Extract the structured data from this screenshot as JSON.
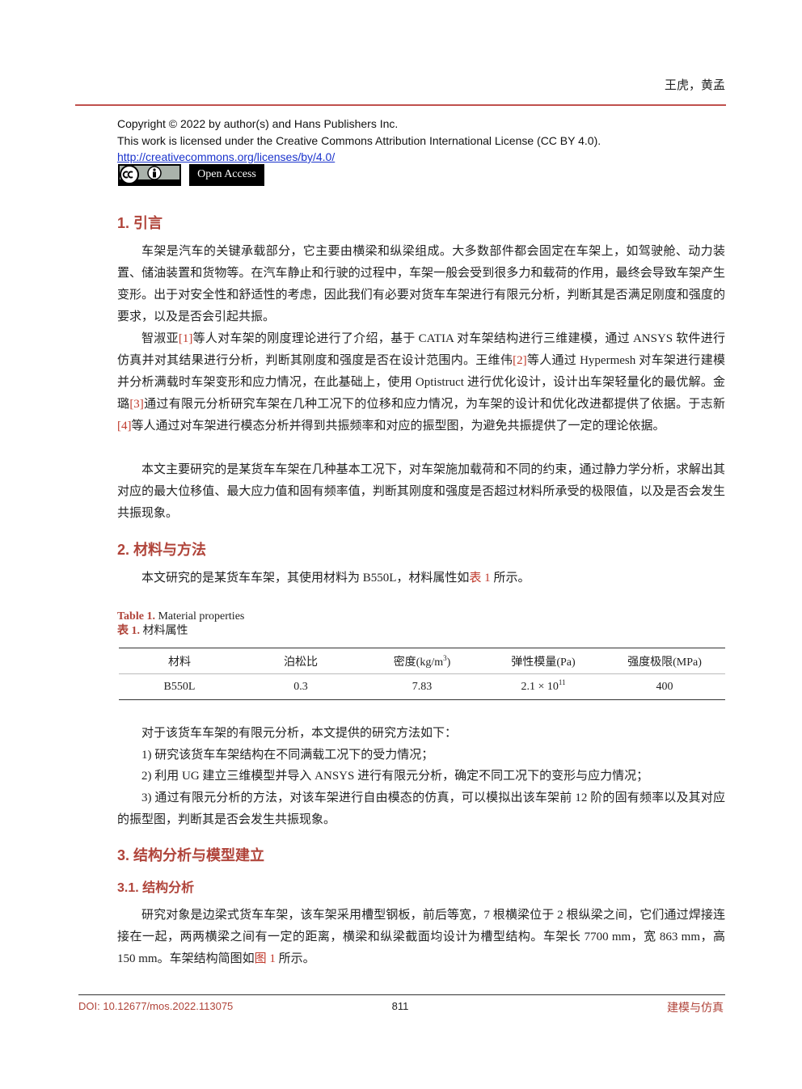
{
  "header": {
    "authors": "王虎，黄孟"
  },
  "license": {
    "copyright": "Copyright © 2022 by author(s) and Hans Publishers Inc.",
    "statement": "This work is licensed under the Creative Commons Attribution International License (CC BY 4.0).",
    "url": "http://creativecommons.org/licenses/by/4.0/",
    "open_access": "Open Access"
  },
  "sections": [
    {
      "heading": "1.  引言",
      "paragraphs": [
        "车架是汽车的关键承载部分，它主要由横梁和纵梁组成。大多数部件都会固定在车架上，如驾驶舱、动力装置、储油装置和货物等。在汽车静止和行驶的过程中，车架一般会受到很多力和载荷的作用，最终会导致车架产生变形。出于对安全性和舒适性的考虑，因此我们有必要对货车车架进行有限元分析，判断其是否满足刚度和强度的要求，以及是否会引起共振。",
        [
          {
            "text": "智淑亚"
          },
          {
            "ref": "[1]"
          },
          {
            "text": "等人对车架的刚度理论进行了介绍，基于 CATIA 对车架结构进行三维建模，通过 ANSYS 软件进行仿真并对其结果进行分析，判断其刚度和强度是否在设计范围内。王维伟"
          },
          {
            "ref": "[2]"
          },
          {
            "text": "等人通过 Hypermesh 对车架进行建模并分析满载时车架变形和应力情况，在此基础上，使用 Optistruct 进行优化设计，设计出车架轻量化的最优解。金璐"
          },
          {
            "ref": "[3]"
          },
          {
            "text": "通过有限元分析研究车架在几种工况下的位移和应力情况，为车架的设计和优化改进都提供了依据。于志新"
          },
          {
            "ref": "[4]"
          },
          {
            "text": "等人通过对车架进行模态分析并得到共振频率和对应的振型图，为避免共振提供了一定的理论依据。"
          }
        ],
        "本文主要研究的是某货车车架在几种基本工况下，对车架施加载荷和不同的约束，通过静力学分析，求解出其对应的最大位移值、最大应力值和固有频率值，判断其刚度和强度是否超过材料所承受的极限值，以及是否会发生共振现象。"
      ]
    },
    {
      "heading": "2.  材料与方法",
      "paragraphs": [
        [
          {
            "text": "本文研究的是某货车车架，其使用材料为 B550L，材料属性如"
          },
          {
            "ref": "表 1"
          },
          {
            "text": " 所示。"
          }
        ],
        "对于该货车车架的有限元分析，本文提供的研究方法如下：",
        "1) 研究该货车车架结构在不同满载工况下的受力情况；",
        "2) 利用 UG 建立三维模型并导入 ANSYS 进行有限元分析，确定不同工况下的变形与应力情况；",
        "3) 通过有限元分析的方法，对该车架进行自由模态的仿真，可以模拟出该车架前 12 阶的固有频率以及其对应的振型图，判断其是否会发生共振现象。"
      ]
    },
    {
      "heading": "3.  结构分析与模型建立",
      "subheading": "3.1.  结构分析",
      "paragraphs": [
        [
          {
            "text": "研究对象是边梁式货车车架，该车架采用槽型钢板，前后等宽，7 根横梁位于 2 根纵梁之间，它们通过焊接连接在一起，两两横梁之间有一定的距离，横梁和纵梁截面均设计为槽型结构。车架长 7700 mm，宽 863 mm，高 150 mm。车架结构简图如"
          },
          {
            "ref": "图 1"
          },
          {
            "text": " 所示。"
          }
        ]
      ]
    }
  ],
  "table": {
    "caption_en": {
      "label": "Table 1.",
      "text": "Material properties"
    },
    "caption_zh": {
      "label": "表 1.",
      "text": "材料属性"
    },
    "columns": [
      "材料",
      "泊松比",
      [
        {
          "text": "密度(kg/m"
        },
        {
          "sup": "3"
        },
        {
          "text": ")"
        }
      ],
      "弹性模量(Pa)",
      "强度极限(MPa)"
    ],
    "rows": [
      [
        "B550L",
        "0.3",
        "7.83",
        [
          {
            "text": "2.1 × 10"
          },
          {
            "sup": "11"
          }
        ],
        "400"
      ]
    ]
  },
  "footer": {
    "doi": "DOI: 10.12677/mos.2022.113075",
    "page": "811",
    "journal": "建模与仿真"
  }
}
